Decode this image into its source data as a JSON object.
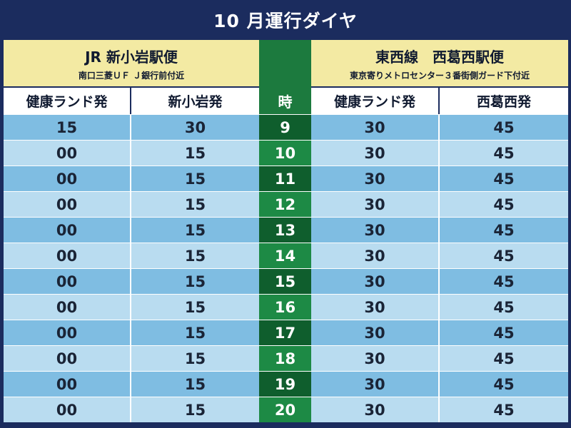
{
  "title": "10 月運行ダイヤ",
  "left_route": {
    "name": "JR 新小岩駅便",
    "stop": "南口三菱ＵＦ Ｊ銀行前付近",
    "col_depart": "健康ランド発",
    "col_return": "新小岩発"
  },
  "right_route": {
    "name": "東西線　西葛西駅便",
    "stop": "東京寄りメトロセンター３番街側ガード下付近",
    "col_depart": "健康ランド発",
    "col_return": "西葛西発"
  },
  "hour_header": "時",
  "rows": [
    {
      "l1": "15",
      "l2": "30",
      "h": "9",
      "r1": "30",
      "r2": "45"
    },
    {
      "l1": "00",
      "l2": "15",
      "h": "10",
      "r1": "30",
      "r2": "45"
    },
    {
      "l1": "00",
      "l2": "15",
      "h": "11",
      "r1": "30",
      "r2": "45"
    },
    {
      "l1": "00",
      "l2": "15",
      "h": "12",
      "r1": "30",
      "r2": "45"
    },
    {
      "l1": "00",
      "l2": "15",
      "h": "13",
      "r1": "30",
      "r2": "45"
    },
    {
      "l1": "00",
      "l2": "15",
      "h": "14",
      "r1": "30",
      "r2": "45"
    },
    {
      "l1": "00",
      "l2": "15",
      "h": "15",
      "r1": "30",
      "r2": "45"
    },
    {
      "l1": "00",
      "l2": "15",
      "h": "16",
      "r1": "30",
      "r2": "45"
    },
    {
      "l1": "00",
      "l2": "15",
      "h": "17",
      "r1": "30",
      "r2": "45"
    },
    {
      "l1": "00",
      "l2": "15",
      "h": "18",
      "r1": "30",
      "r2": "45"
    },
    {
      "l1": "00",
      "l2": "15",
      "h": "19",
      "r1": "30",
      "r2": "45"
    },
    {
      "l1": "00",
      "l2": "15",
      "h": "20",
      "r1": "30",
      "r2": "45"
    }
  ],
  "colors": {
    "background": "#1b2c5e",
    "header_yellow": "#f3eaa3",
    "row_dark": "#7fbde2",
    "row_light": "#b9dcf0",
    "hour_green_dark": "#0f5e2d",
    "hour_green_light": "#1d8a45"
  }
}
